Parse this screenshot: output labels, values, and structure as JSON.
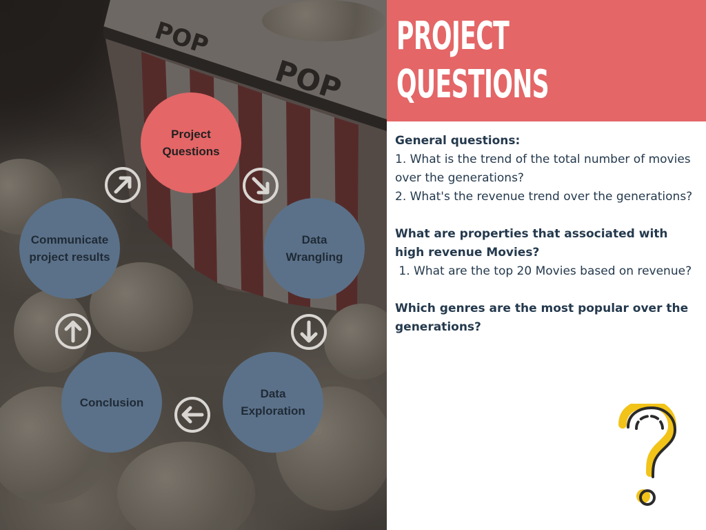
{
  "header": {
    "title_line1": "PROJECT",
    "title_line2": "QUESTIONS"
  },
  "cycle": {
    "nodes": [
      {
        "id": "project-questions",
        "label_line1": "Project",
        "label_line2": "Questions",
        "active": true
      },
      {
        "id": "data-wrangling",
        "label_line1": "Data",
        "label_line2": "Wrangling",
        "active": false
      },
      {
        "id": "data-exploration",
        "label_line1": "Data",
        "label_line2": "Exploration",
        "active": false
      },
      {
        "id": "conclusion",
        "label_line1": "Conclusion",
        "label_line2": "",
        "active": false
      },
      {
        "id": "communicate",
        "label_line1": "Communicate",
        "label_line2": "project results",
        "active": false
      }
    ],
    "arrow_icons": [
      "arrow-up-right-icon",
      "arrow-down-right-icon",
      "arrow-down-icon",
      "arrow-left-icon",
      "arrow-up-icon"
    ]
  },
  "content": {
    "general_heading": "General questions:",
    "general_q1": "1. What is the trend of the total number of movies over the generations?",
    "general_q2": "2. What's the revenue trend over the generations?",
    "properties_heading": "What are properties that associated with high revenue Movies?",
    "properties_q1": " 1. What are the top 20 Movies based on revenue?",
    "genres_heading": "Which genres are the most popular over the generations?"
  },
  "decoration": {
    "icon": "question-mark-icon",
    "box_text": "POP"
  },
  "colors": {
    "accent": "#e46667",
    "node": "#5b7189",
    "text": "#24394d",
    "question_mark_yellow": "#f2c318",
    "question_mark_dark": "#2b2b2b"
  }
}
